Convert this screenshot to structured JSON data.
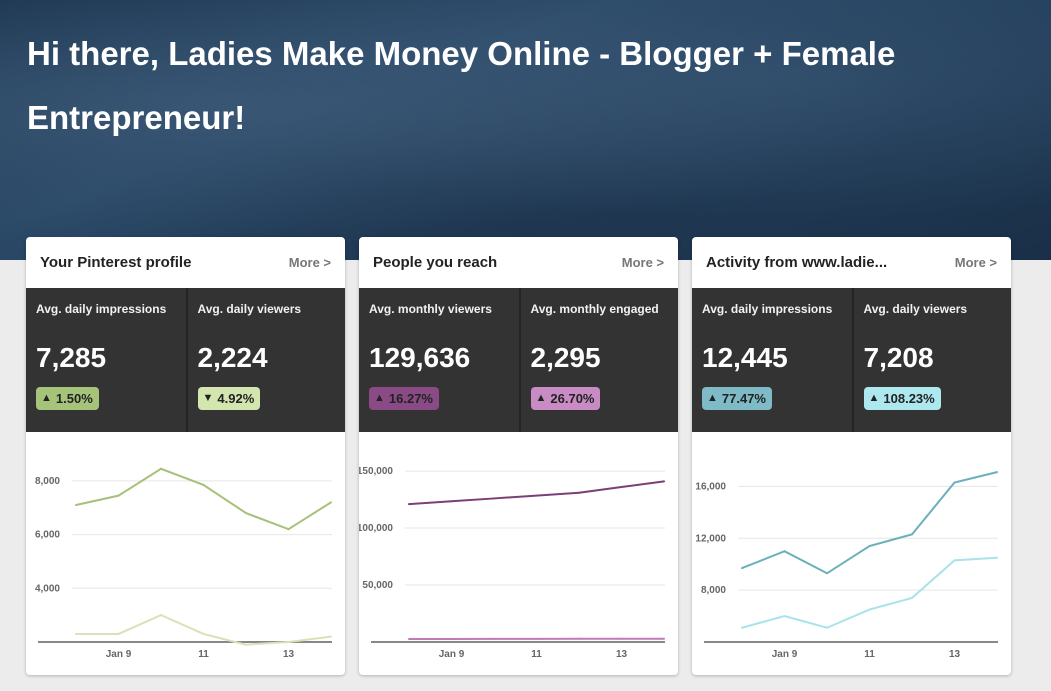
{
  "header": {
    "greeting": "Hi there, Ladies Make Money Online - Blogger + Female Entrepreneur!"
  },
  "cards": [
    {
      "title": "Your Pinterest profile",
      "more": "More >",
      "metrics": [
        {
          "label": "Avg. daily impressions",
          "value": "7,285",
          "change": "1.50%",
          "direction": "up",
          "badge_color": "#a5c47a"
        },
        {
          "label": "Avg. daily viewers",
          "value": "2,224",
          "change": "4.92%",
          "direction": "down",
          "badge_color": "#d4e6b0"
        }
      ]
    },
    {
      "title": "People you reach",
      "more": "More >",
      "metrics": [
        {
          "label": "Avg. monthly viewers",
          "value": "129,636",
          "change": "16.27%",
          "direction": "up",
          "badge_color": "#8a4a85"
        },
        {
          "label": "Avg. monthly engaged",
          "value": "2,295",
          "change": "26.70%",
          "direction": "up",
          "badge_color": "#c88bc4"
        }
      ]
    },
    {
      "title": "Activity from www.ladie...",
      "more": "More >",
      "metrics": [
        {
          "label": "Avg. daily impressions",
          "value": "12,445",
          "change": "77.47%",
          "direction": "up",
          "badge_color": "#7fbac7"
        },
        {
          "label": "Avg. daily viewers",
          "value": "7,208",
          "change": "108.23%",
          "direction": "up",
          "badge_color": "#aee8ef"
        }
      ]
    }
  ],
  "chart_data": [
    {
      "type": "line",
      "x_labels": [
        "",
        "Jan 9",
        "",
        "11",
        "",
        "13",
        ""
      ],
      "ylim": [
        2000,
        9000
      ],
      "yticks": [
        {
          "v": 4000,
          "label": "4,000"
        },
        {
          "v": 6000,
          "label": "6,000"
        },
        {
          "v": 8000,
          "label": "8,000"
        }
      ],
      "series": [
        {
          "color": "#a8c07a",
          "values": [
            7100,
            7450,
            8450,
            7850,
            6800,
            6200,
            7200
          ]
        },
        {
          "color": "#d6e3b8",
          "values": [
            2300,
            2300,
            3000,
            2300,
            1900,
            2000,
            2200
          ]
        }
      ]
    },
    {
      "type": "line",
      "x_labels": [
        "",
        "Jan 9",
        "",
        "11",
        "",
        "13",
        ""
      ],
      "ylim": [
        0,
        165000
      ],
      "yticks": [
        {
          "v": 50000,
          "label": "50,000"
        },
        {
          "v": 100000,
          "label": "100,000"
        },
        {
          "v": 150000,
          "label": "150,000"
        }
      ],
      "series": [
        {
          "color": "#7b3f76",
          "values": [
            121000,
            123500,
            126000,
            128500,
            131000,
            136000,
            141000
          ]
        },
        {
          "color": "#c07ab8",
          "values": [
            2600,
            2600,
            2700,
            2700,
            2800,
            2850,
            2900
          ]
        }
      ]
    },
    {
      "type": "line",
      "x_labels": [
        "",
        "Jan 9",
        "",
        "11",
        "",
        "13",
        ""
      ],
      "ylim": [
        4000,
        18500
      ],
      "yticks": [
        {
          "v": 8000,
          "label": "8,000"
        },
        {
          "v": 12000,
          "label": "12,000"
        },
        {
          "v": 16000,
          "label": "16,000"
        }
      ],
      "series": [
        {
          "color": "#6ab0ba",
          "values": [
            9700,
            11000,
            9300,
            11400,
            12300,
            16300,
            17100
          ]
        },
        {
          "color": "#a8e3ea",
          "values": [
            5100,
            6000,
            5100,
            6500,
            7400,
            10300,
            10500
          ]
        }
      ]
    }
  ]
}
